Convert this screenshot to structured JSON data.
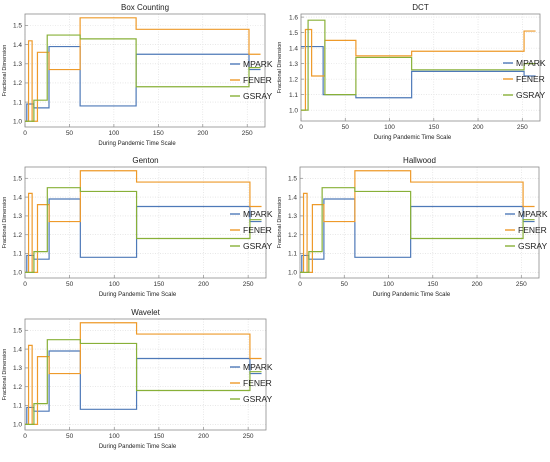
{
  "chart_data": [
    {
      "type": "line",
      "title": "Box Counting",
      "xlabel": "During Pandemic Time Scale",
      "ylabel": "Fractional Dimension",
      "xlim": [
        0,
        270
      ],
      "ylim": [
        0.97,
        1.56
      ],
      "x_ticks": [
        0,
        50,
        100,
        150,
        200,
        250
      ],
      "y_ticks": [
        1.0,
        1.1,
        1.2,
        1.3,
        1.4,
        1.5
      ],
      "y_tick_labels": [
        "1.0",
        "1.1",
        "1.2",
        "1.3",
        "1.4",
        "1.5"
      ],
      "legend_position": "right",
      "grid": true,
      "series": [
        {
          "name": "MPARK",
          "color": "#4e79b8",
          "steps": [
            [
              0,
              1.0
            ],
            [
              2,
              1.09
            ],
            [
              10,
              1.07
            ],
            [
              27,
              1.39
            ],
            [
              62,
              1.08
            ],
            [
              125,
              1.35
            ],
            [
              252,
              1.27
            ],
            [
              265,
              1.27
            ]
          ]
        },
        {
          "name": "FENER",
          "color": "#ee9a2a",
          "steps": [
            [
              0,
              1.0
            ],
            [
              4,
              1.42
            ],
            [
              8,
              1.0
            ],
            [
              14,
              1.36
            ],
            [
              27,
              1.27
            ],
            [
              62,
              1.54
            ],
            [
              125,
              1.48
            ],
            [
              252,
              1.35
            ],
            [
              265,
              1.35
            ]
          ]
        },
        {
          "name": "GSRAY",
          "color": "#88b038",
          "steps": [
            [
              0,
              1.0
            ],
            [
              10,
              1.11
            ],
            [
              25,
              1.45
            ],
            [
              62,
              1.43
            ],
            [
              125,
              1.18
            ],
            [
              252,
              1.28
            ],
            [
              265,
              1.28
            ]
          ]
        }
      ]
    },
    {
      "type": "line",
      "title": "DCT",
      "xlabel": "During Pandemic Time Scale",
      "ylabel": "Fractional Dimension",
      "xlim": [
        0,
        270
      ],
      "ylim": [
        0.93,
        1.62
      ],
      "x_ticks": [
        0,
        50,
        100,
        150,
        200,
        250
      ],
      "y_ticks": [
        1.0,
        1.1,
        1.2,
        1.3,
        1.4,
        1.5,
        1.6
      ],
      "y_tick_labels": [
        "1.0",
        "1.1",
        "1.2",
        "1.3",
        "1.4",
        "1.5",
        "1.6"
      ],
      "legend_position": "right",
      "grid": true,
      "series": [
        {
          "name": "MPARK",
          "color": "#4e79b8",
          "steps": [
            [
              0,
              1.41
            ],
            [
              10,
              1.41
            ],
            [
              25,
              1.1
            ],
            [
              62,
              1.08
            ],
            [
              125,
              1.25
            ],
            [
              252,
              1.22
            ],
            [
              265,
              1.22
            ]
          ]
        },
        {
          "name": "FENER",
          "color": "#ee9a2a",
          "steps": [
            [
              0,
              1.0
            ],
            [
              5,
              1.52
            ],
            [
              12,
              1.22
            ],
            [
              27,
              1.45
            ],
            [
              62,
              1.35
            ],
            [
              125,
              1.38
            ],
            [
              252,
              1.51
            ],
            [
              265,
              1.51
            ]
          ]
        },
        {
          "name": "GSRAY",
          "color": "#88b038",
          "steps": [
            [
              0,
              1.0
            ],
            [
              8,
              1.58
            ],
            [
              27,
              1.1
            ],
            [
              62,
              1.34
            ],
            [
              125,
              1.26
            ],
            [
              252,
              1.3
            ],
            [
              265,
              1.3
            ]
          ]
        }
      ]
    },
    {
      "type": "line",
      "title": "Genton",
      "xlabel": "During Pandemic Time Scale",
      "ylabel": "Fractional Dimension",
      "xlim": [
        0,
        270
      ],
      "ylim": [
        0.97,
        1.56
      ],
      "x_ticks": [
        0,
        50,
        100,
        150,
        200,
        250
      ],
      "y_ticks": [
        1.0,
        1.1,
        1.2,
        1.3,
        1.4,
        1.5
      ],
      "y_tick_labels": [
        "1.0",
        "1.1",
        "1.2",
        "1.3",
        "1.4",
        "1.5"
      ],
      "legend_position": "right",
      "grid": true,
      "series": [
        {
          "name": "MPARK",
          "color": "#4e79b8",
          "steps": [
            [
              0,
              1.0
            ],
            [
              2,
              1.09
            ],
            [
              10,
              1.07
            ],
            [
              27,
              1.39
            ],
            [
              62,
              1.08
            ],
            [
              125,
              1.35
            ],
            [
              252,
              1.27
            ],
            [
              265,
              1.27
            ]
          ]
        },
        {
          "name": "FENER",
          "color": "#ee9a2a",
          "steps": [
            [
              0,
              1.0
            ],
            [
              4,
              1.42
            ],
            [
              8,
              1.0
            ],
            [
              14,
              1.36
            ],
            [
              27,
              1.27
            ],
            [
              62,
              1.54
            ],
            [
              125,
              1.48
            ],
            [
              252,
              1.35
            ],
            [
              265,
              1.35
            ]
          ]
        },
        {
          "name": "GSRAY",
          "color": "#88b038",
          "steps": [
            [
              0,
              1.0
            ],
            [
              10,
              1.11
            ],
            [
              25,
              1.45
            ],
            [
              62,
              1.43
            ],
            [
              125,
              1.18
            ],
            [
              252,
              1.28
            ],
            [
              265,
              1.28
            ]
          ]
        }
      ]
    },
    {
      "type": "line",
      "title": "Hallwood",
      "xlabel": "During Pandemic Time Scale",
      "ylabel": "Fractional Dimension",
      "xlim": [
        0,
        270
      ],
      "ylim": [
        0.97,
        1.56
      ],
      "x_ticks": [
        0,
        50,
        100,
        150,
        200,
        250
      ],
      "y_ticks": [
        1.0,
        1.1,
        1.2,
        1.3,
        1.4,
        1.5
      ],
      "y_tick_labels": [
        "1.0",
        "1.1",
        "1.2",
        "1.3",
        "1.4",
        "1.5"
      ],
      "legend_position": "right",
      "grid": true,
      "series": [
        {
          "name": "MPARK",
          "color": "#4e79b8",
          "steps": [
            [
              0,
              1.0
            ],
            [
              2,
              1.09
            ],
            [
              10,
              1.07
            ],
            [
              27,
              1.39
            ],
            [
              62,
              1.08
            ],
            [
              125,
              1.35
            ],
            [
              252,
              1.27
            ],
            [
              265,
              1.27
            ]
          ]
        },
        {
          "name": "FENER",
          "color": "#ee9a2a",
          "steps": [
            [
              0,
              1.0
            ],
            [
              4,
              1.42
            ],
            [
              8,
              1.0
            ],
            [
              14,
              1.36
            ],
            [
              27,
              1.27
            ],
            [
              62,
              1.54
            ],
            [
              125,
              1.48
            ],
            [
              252,
              1.35
            ],
            [
              265,
              1.35
            ]
          ]
        },
        {
          "name": "GSRAY",
          "color": "#88b038",
          "steps": [
            [
              0,
              1.0
            ],
            [
              10,
              1.11
            ],
            [
              25,
              1.45
            ],
            [
              62,
              1.43
            ],
            [
              125,
              1.18
            ],
            [
              252,
              1.28
            ],
            [
              265,
              1.28
            ]
          ]
        }
      ]
    },
    {
      "type": "line",
      "title": "Wavelet",
      "xlabel": "During Pandemic Time Scale",
      "ylabel": "Fractional Dimension",
      "xlim": [
        0,
        270
      ],
      "ylim": [
        0.97,
        1.56
      ],
      "x_ticks": [
        0,
        50,
        100,
        150,
        200,
        250
      ],
      "y_ticks": [
        1.0,
        1.1,
        1.2,
        1.3,
        1.4,
        1.5
      ],
      "y_tick_labels": [
        "1.0",
        "1.1",
        "1.2",
        "1.3",
        "1.4",
        "1.5"
      ],
      "legend_position": "right",
      "grid": true,
      "series": [
        {
          "name": "MPARK",
          "color": "#4e79b8",
          "steps": [
            [
              0,
              1.0
            ],
            [
              2,
              1.09
            ],
            [
              10,
              1.07
            ],
            [
              27,
              1.39
            ],
            [
              62,
              1.08
            ],
            [
              125,
              1.35
            ],
            [
              252,
              1.27
            ],
            [
              265,
              1.27
            ]
          ]
        },
        {
          "name": "FENER",
          "color": "#ee9a2a",
          "steps": [
            [
              0,
              1.0
            ],
            [
              4,
              1.42
            ],
            [
              8,
              1.0
            ],
            [
              14,
              1.36
            ],
            [
              27,
              1.27
            ],
            [
              62,
              1.54
            ],
            [
              125,
              1.48
            ],
            [
              252,
              1.35
            ],
            [
              265,
              1.35
            ]
          ]
        },
        {
          "name": "GSRAY",
          "color": "#88b038",
          "steps": [
            [
              0,
              1.0
            ],
            [
              10,
              1.11
            ],
            [
              25,
              1.45
            ],
            [
              62,
              1.43
            ],
            [
              125,
              1.18
            ],
            [
              252,
              1.28
            ],
            [
              265,
              1.28
            ]
          ]
        }
      ]
    }
  ]
}
